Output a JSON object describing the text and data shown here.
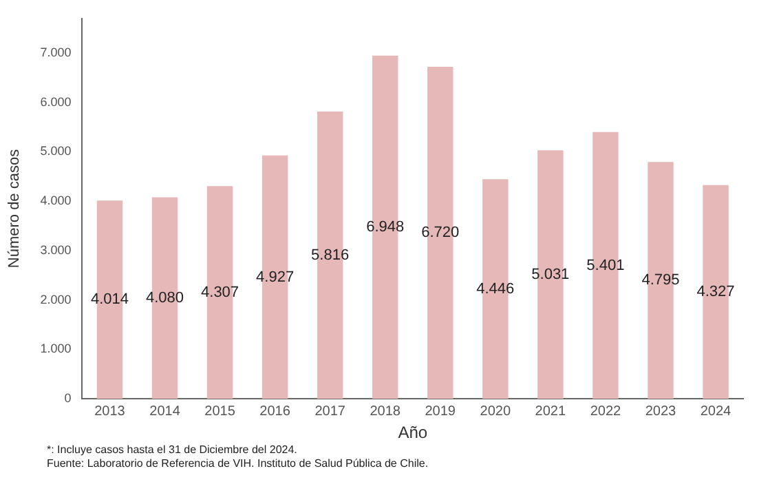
{
  "chart_data": {
    "type": "bar",
    "xlabel": "Año",
    "ylabel": "Número de casos",
    "categories": [
      "2013",
      "2014",
      "2015",
      "2016",
      "2017",
      "2018",
      "2019",
      "2020",
      "2021",
      "2022",
      "2023",
      "2024"
    ],
    "values": [
      4014,
      4080,
      4307,
      4927,
      5816,
      6948,
      6720,
      4446,
      5031,
      5401,
      4795,
      4327
    ],
    "value_labels": [
      "4.014",
      "4.080",
      "4.307",
      "4.927",
      "5.816",
      "6.948",
      "6.720",
      "4.446",
      "5.031",
      "5.401",
      "4.795",
      "4.327"
    ],
    "color": "#e6b8b8",
    "ylim": [
      0,
      7700
    ],
    "yticks": [
      {
        "value": 0,
        "label": "0"
      },
      {
        "value": 1000,
        "label": "1.000"
      },
      {
        "value": 2000,
        "label": "2.000"
      },
      {
        "value": 3000,
        "label": "3.000"
      },
      {
        "value": 4000,
        "label": "4.000"
      },
      {
        "value": 5000,
        "label": "5.000"
      },
      {
        "value": 6000,
        "label": "6.000"
      },
      {
        "value": 7000,
        "label": "7.000"
      }
    ],
    "grid": false,
    "legend": false,
    "annotations": [
      "*: Incluye casos hasta el 31 de Diciembre del 2024.",
      "Fuente: Laboratorio de Referencia de VIH. Instituto de Salud Pública de Chile."
    ]
  }
}
